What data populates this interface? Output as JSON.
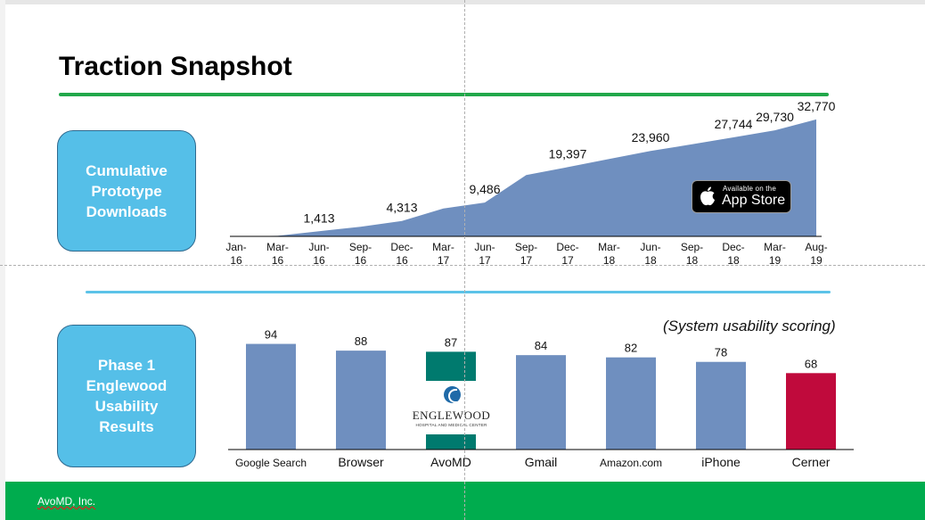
{
  "slide": {
    "title": "Traction Snapshot",
    "footer": "AvoMD, Inc.",
    "colors": {
      "title_rule": "#21a84a",
      "section_rule": "#5cc3e8",
      "label_box": "#55bfe8",
      "footer": "#00ac4e"
    }
  },
  "labels": {
    "downloads": [
      "Cumulative",
      "Prototype",
      "Downloads"
    ],
    "usability": [
      "Phase 1",
      "Englewood",
      "Usability",
      "Results"
    ]
  },
  "app_store_badge": {
    "small_text": "Available on the",
    "large_text": "App Store",
    "icon": "apple-icon"
  },
  "usability_note": "(System usability scoring)",
  "logo": {
    "name": "ENGLEWOOD",
    "tagline": "HOSPITAL AND MEDICAL CENTER",
    "icon": "englewood-e-icon"
  },
  "chart_data": [
    {
      "type": "area",
      "categories": [
        "Jan-16",
        "Mar-16",
        "Jun-16",
        "Sep-16",
        "Dec-16",
        "Mar-17",
        "Jun-17",
        "Sep-17",
        "Dec-17",
        "Mar-18",
        "Jun-18",
        "Sep-18",
        "Dec-18",
        "Mar-19",
        "Aug-19"
      ],
      "values": [
        0,
        150,
        1413,
        2700,
        4313,
        7800,
        9486,
        17200,
        19397,
        21700,
        23960,
        25800,
        27744,
        29730,
        32770
      ],
      "data_labels": [
        {
          "category": "Jun-16",
          "text": "1,413"
        },
        {
          "category": "Dec-16",
          "text": "4,313"
        },
        {
          "category": "Jun-17",
          "text": "9,486"
        },
        {
          "category": "Dec-17",
          "text": "19,397"
        },
        {
          "category": "Jun-18",
          "text": "23,960"
        },
        {
          "category": "Dec-18",
          "text": "27,744"
        },
        {
          "category": "Mar-19",
          "text": "29,730"
        },
        {
          "category": "Aug-19",
          "text": "32,770"
        }
      ],
      "ylim": [
        0,
        35000
      ],
      "color": "#6f8fbf",
      "grid": false,
      "legend": "none"
    },
    {
      "type": "bar",
      "categories": [
        "Google Search",
        "Browser",
        "AvoMD",
        "Gmail",
        "Amazon.com",
        "iPhone",
        "Cerner"
      ],
      "values": [
        94,
        88,
        87,
        84,
        82,
        78,
        68
      ],
      "ylim": [
        0,
        100
      ],
      "colors": [
        "#6f8fbf",
        "#6f8fbf",
        "#007a6e",
        "#6f8fbf",
        "#6f8fbf",
        "#6f8fbf",
        "#c00a3c"
      ],
      "grid": false,
      "legend": "none"
    }
  ]
}
